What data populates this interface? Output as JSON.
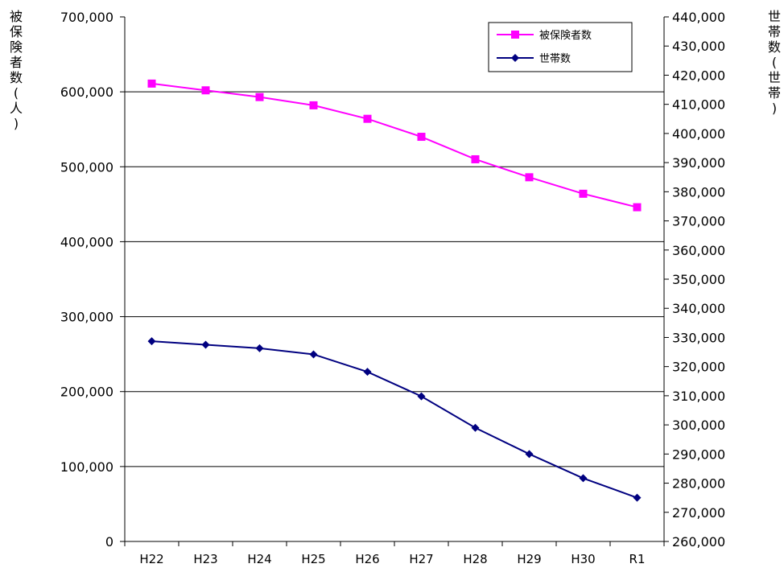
{
  "chart_data": {
    "type": "line",
    "categories": [
      "H22",
      "H23",
      "H24",
      "H25",
      "H26",
      "H27",
      "H28",
      "H29",
      "H30",
      "R1"
    ],
    "series": [
      {
        "name": "被保険者数",
        "axis": "left",
        "color": "#ff00ff",
        "marker": "square",
        "values": [
          611000,
          602000,
          593000,
          582000,
          564000,
          540000,
          510000,
          486000,
          464000,
          446000
        ]
      },
      {
        "name": "世帯数",
        "axis": "right",
        "color": "#000080",
        "marker": "diamond",
        "values": [
          328700,
          327500,
          326300,
          324200,
          318200,
          309800,
          299000,
          290000,
          281700,
          275000
        ]
      }
    ],
    "y_left": {
      "label": "被保険者数(人)",
      "range": [
        0,
        700000
      ],
      "ticks": [
        "0",
        "100,000",
        "200,000",
        "300,000",
        "400,000",
        "500,000",
        "600,000",
        "700,000"
      ]
    },
    "y_right": {
      "label": "世帯数(世帯)",
      "range": [
        260000,
        440000
      ],
      "ticks": [
        "260,000",
        "270,000",
        "280,000",
        "290,000",
        "300,000",
        "310,000",
        "320,000",
        "330,000",
        "340,000",
        "350,000",
        "360,000",
        "370,000",
        "380,000",
        "390,000",
        "400,000",
        "410,000",
        "420,000",
        "430,000",
        "440,000"
      ]
    },
    "grid": "horizontal-left-major",
    "legend": "top-right"
  }
}
